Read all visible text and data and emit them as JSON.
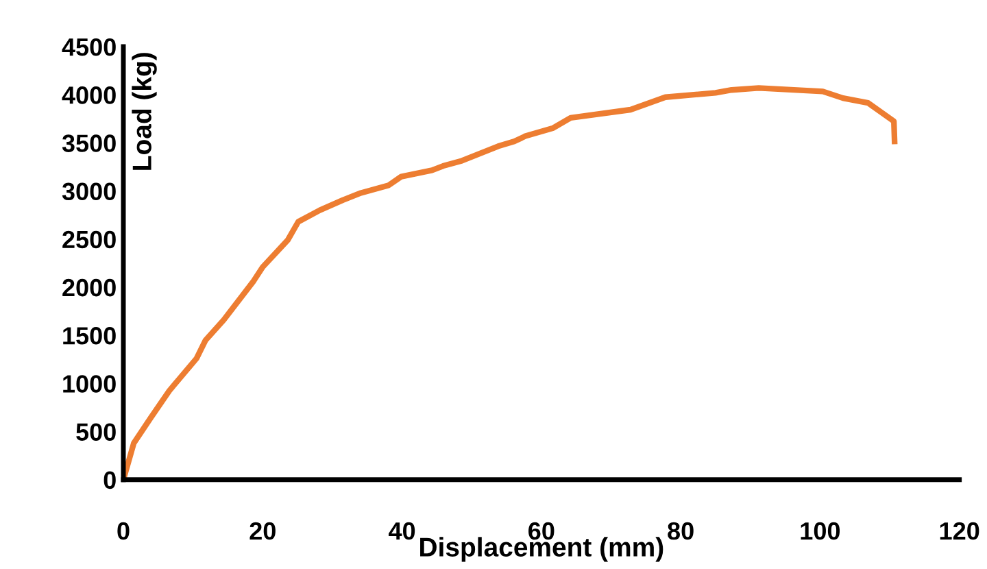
{
  "chart_data": {
    "type": "line",
    "xlabel": "Displacement (mm)",
    "ylabel": "Load (kg)",
    "x": [
      0,
      1.5,
      3.9,
      6.6,
      10.5,
      11.8,
      14.4,
      18.7,
      20.0,
      23.6,
      25.1,
      28.2,
      31.5,
      34.1,
      38.1,
      39.9,
      44.3,
      45.9,
      48.6,
      53.8,
      56.1,
      57.7,
      61.7,
      64.2,
      72.8,
      77.8,
      85.0,
      87.3,
      91.2,
      100.4,
      103.3,
      106.9,
      110.6,
      110.7
    ],
    "series": [
      {
        "color": "#ed7d31",
        "values": [
          0,
          380,
          640,
          925,
          1260,
          1450,
          1660,
          2065,
          2210,
          2490,
          2680,
          2800,
          2905,
          2980,
          3060,
          3150,
          3215,
          3260,
          3315,
          3465,
          3515,
          3570,
          3655,
          3760,
          3845,
          3975,
          4020,
          4050,
          4070,
          4035,
          3965,
          3915,
          3725,
          3515
        ]
      }
    ],
    "xlim": [
      0,
      120
    ],
    "ylim": [
      0,
      4500
    ],
    "xticks": [
      0,
      20,
      40,
      60,
      80,
      100,
      120
    ],
    "yticks": [
      0,
      500,
      1000,
      1500,
      2000,
      2500,
      3000,
      3500,
      4000,
      4500
    ],
    "grid": false,
    "legend": false,
    "marker": "none",
    "line_style": "solid"
  }
}
